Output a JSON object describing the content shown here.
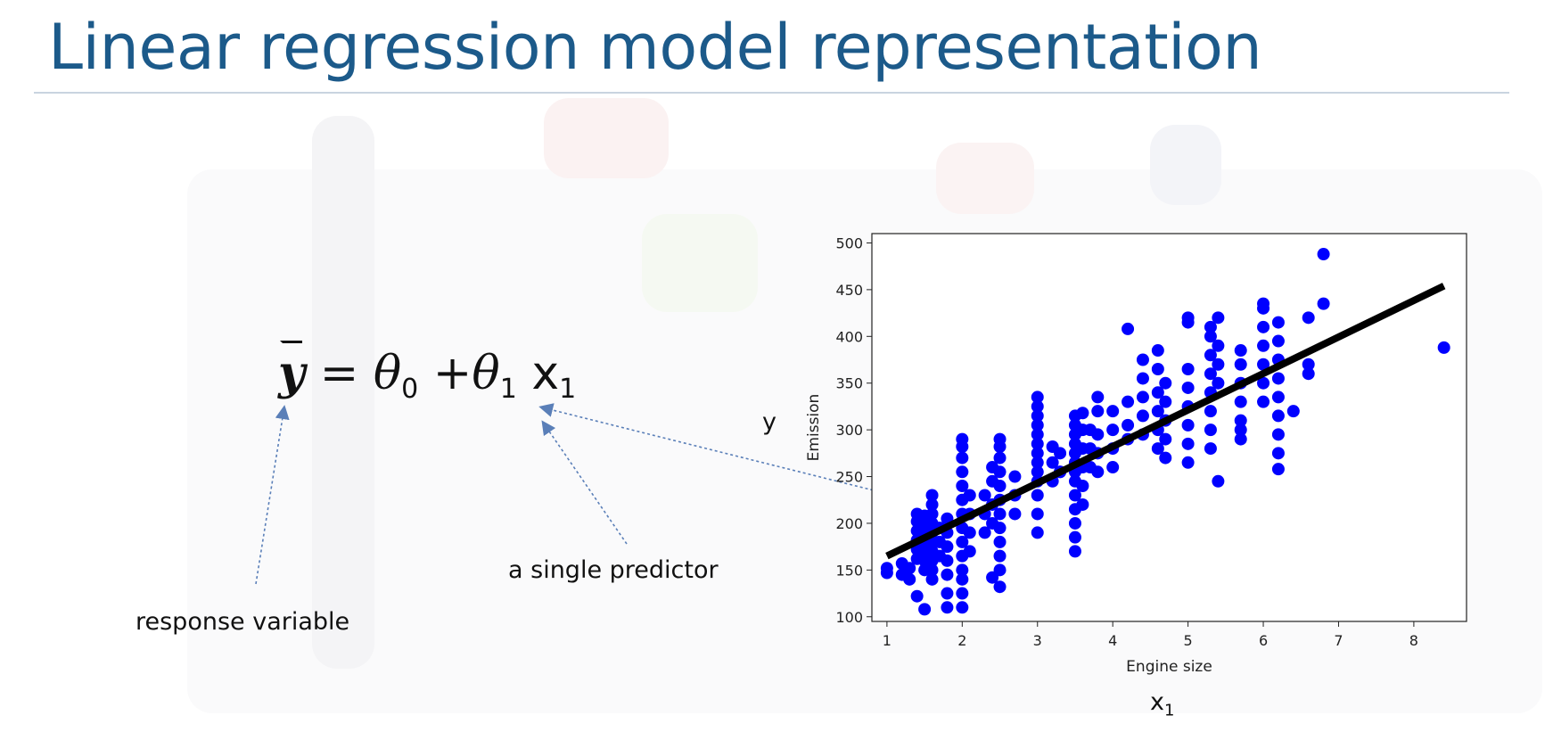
{
  "slide": {
    "title": "Linear regression model representation"
  },
  "formula": {
    "lhs": "y",
    "equals": "=",
    "theta": "θ",
    "sub0": "0",
    "plus": "+",
    "sub1": "1",
    "x": "x",
    "xsub": "1"
  },
  "annotations": {
    "response": "response variable",
    "predictor": "a single predictor",
    "y_label": "y",
    "x_label": "x",
    "x_sub": "1"
  },
  "colors": {
    "title": "#1c5a8a",
    "points": "#0000ff",
    "line": "#000000",
    "arrows": "#5a7fb8"
  },
  "chart_data": {
    "type": "scatter",
    "xlabel": "Engine size",
    "ylabel": "Emission",
    "xlim": [
      0.8,
      8.7
    ],
    "ylim": [
      95,
      510
    ],
    "xticks": [
      1,
      2,
      3,
      4,
      5,
      6,
      7,
      8
    ],
    "yticks": [
      100,
      150,
      200,
      250,
      300,
      350,
      400,
      450,
      500
    ],
    "grid": false,
    "series": [
      {
        "points": [
          [
            1.0,
            147
          ],
          [
            1.0,
            152
          ],
          [
            1.2,
            145
          ],
          [
            1.2,
            157
          ],
          [
            1.3,
            140
          ],
          [
            1.3,
            152
          ],
          [
            1.4,
            162
          ],
          [
            1.4,
            172
          ],
          [
            1.4,
            182
          ],
          [
            1.4,
            192
          ],
          [
            1.4,
            202
          ],
          [
            1.4,
            210
          ],
          [
            1.4,
            122
          ],
          [
            1.5,
            150
          ],
          [
            1.5,
            160
          ],
          [
            1.5,
            170
          ],
          [
            1.5,
            180
          ],
          [
            1.5,
            190
          ],
          [
            1.5,
            200
          ],
          [
            1.5,
            208
          ],
          [
            1.5,
            108
          ],
          [
            1.6,
            140
          ],
          [
            1.6,
            150
          ],
          [
            1.6,
            160
          ],
          [
            1.6,
            170
          ],
          [
            1.6,
            180
          ],
          [
            1.6,
            190
          ],
          [
            1.6,
            200
          ],
          [
            1.6,
            210
          ],
          [
            1.6,
            220
          ],
          [
            1.6,
            230
          ],
          [
            1.7,
            165
          ],
          [
            1.7,
            180
          ],
          [
            1.7,
            195
          ],
          [
            1.8,
            110
          ],
          [
            1.8,
            125
          ],
          [
            1.8,
            145
          ],
          [
            1.8,
            160
          ],
          [
            1.8,
            175
          ],
          [
            1.8,
            190
          ],
          [
            1.8,
            205
          ],
          [
            2.0,
            110
          ],
          [
            2.0,
            125
          ],
          [
            2.0,
            140
          ],
          [
            2.0,
            150
          ],
          [
            2.0,
            165
          ],
          [
            2.0,
            180
          ],
          [
            2.0,
            195
          ],
          [
            2.0,
            210
          ],
          [
            2.0,
            225
          ],
          [
            2.0,
            240
          ],
          [
            2.0,
            255
          ],
          [
            2.0,
            270
          ],
          [
            2.0,
            282
          ],
          [
            2.0,
            290
          ],
          [
            2.1,
            170
          ],
          [
            2.1,
            190
          ],
          [
            2.1,
            210
          ],
          [
            2.1,
            230
          ],
          [
            2.3,
            190
          ],
          [
            2.3,
            210
          ],
          [
            2.3,
            230
          ],
          [
            2.4,
            142
          ],
          [
            2.4,
            200
          ],
          [
            2.4,
            220
          ],
          [
            2.4,
            245
          ],
          [
            2.4,
            260
          ],
          [
            2.5,
            132
          ],
          [
            2.5,
            150
          ],
          [
            2.5,
            165
          ],
          [
            2.5,
            180
          ],
          [
            2.5,
            195
          ],
          [
            2.5,
            210
          ],
          [
            2.5,
            225
          ],
          [
            2.5,
            240
          ],
          [
            2.5,
            255
          ],
          [
            2.5,
            270
          ],
          [
            2.5,
            282
          ],
          [
            2.5,
            290
          ],
          [
            2.7,
            210
          ],
          [
            2.7,
            230
          ],
          [
            2.7,
            250
          ],
          [
            3.0,
            190
          ],
          [
            3.0,
            210
          ],
          [
            3.0,
            230
          ],
          [
            3.0,
            245
          ],
          [
            3.0,
            255
          ],
          [
            3.0,
            265
          ],
          [
            3.0,
            275
          ],
          [
            3.0,
            285
          ],
          [
            3.0,
            295
          ],
          [
            3.0,
            305
          ],
          [
            3.0,
            315
          ],
          [
            3.0,
            325
          ],
          [
            3.0,
            335
          ],
          [
            3.2,
            245
          ],
          [
            3.2,
            265
          ],
          [
            3.2,
            282
          ],
          [
            3.3,
            255
          ],
          [
            3.3,
            275
          ],
          [
            3.3,
            255
          ],
          [
            3.5,
            170
          ],
          [
            3.5,
            185
          ],
          [
            3.5,
            200
          ],
          [
            3.5,
            215
          ],
          [
            3.5,
            230
          ],
          [
            3.5,
            245
          ],
          [
            3.5,
            255
          ],
          [
            3.5,
            265
          ],
          [
            3.5,
            275
          ],
          [
            3.5,
            285
          ],
          [
            3.5,
            295
          ],
          [
            3.5,
            305
          ],
          [
            3.5,
            315
          ],
          [
            3.6,
            220
          ],
          [
            3.6,
            240
          ],
          [
            3.6,
            260
          ],
          [
            3.6,
            280
          ],
          [
            3.6,
            300
          ],
          [
            3.6,
            318
          ],
          [
            3.7,
            260
          ],
          [
            3.7,
            280
          ],
          [
            3.7,
            300
          ],
          [
            3.8,
            255
          ],
          [
            3.8,
            275
          ],
          [
            3.8,
            295
          ],
          [
            3.8,
            320
          ],
          [
            3.8,
            335
          ],
          [
            4.0,
            260
          ],
          [
            4.0,
            280
          ],
          [
            4.0,
            300
          ],
          [
            4.0,
            320
          ],
          [
            4.2,
            290
          ],
          [
            4.2,
            305
          ],
          [
            4.2,
            330
          ],
          [
            4.2,
            408
          ],
          [
            4.4,
            295
          ],
          [
            4.4,
            315
          ],
          [
            4.4,
            335
          ],
          [
            4.4,
            355
          ],
          [
            4.4,
            375
          ],
          [
            4.6,
            280
          ],
          [
            4.6,
            300
          ],
          [
            4.6,
            320
          ],
          [
            4.6,
            340
          ],
          [
            4.6,
            365
          ],
          [
            4.6,
            385
          ],
          [
            4.7,
            270
          ],
          [
            4.7,
            290
          ],
          [
            4.7,
            310
          ],
          [
            4.7,
            330
          ],
          [
            4.7,
            350
          ],
          [
            5.0,
            265
          ],
          [
            5.0,
            285
          ],
          [
            5.0,
            305
          ],
          [
            5.0,
            325
          ],
          [
            5.0,
            345
          ],
          [
            5.0,
            365
          ],
          [
            5.0,
            415
          ],
          [
            5.0,
            420
          ],
          [
            5.3,
            280
          ],
          [
            5.3,
            300
          ],
          [
            5.3,
            320
          ],
          [
            5.3,
            340
          ],
          [
            5.3,
            360
          ],
          [
            5.3,
            380
          ],
          [
            5.3,
            400
          ],
          [
            5.3,
            410
          ],
          [
            5.4,
            245
          ],
          [
            5.4,
            350
          ],
          [
            5.4,
            370
          ],
          [
            5.4,
            390
          ],
          [
            5.4,
            420
          ],
          [
            5.7,
            290
          ],
          [
            5.7,
            310
          ],
          [
            5.7,
            330
          ],
          [
            5.7,
            350
          ],
          [
            5.7,
            370
          ],
          [
            5.7,
            385
          ],
          [
            5.7,
            300
          ],
          [
            6.0,
            330
          ],
          [
            6.0,
            350
          ],
          [
            6.0,
            370
          ],
          [
            6.0,
            390
          ],
          [
            6.0,
            410
          ],
          [
            6.0,
            430
          ],
          [
            6.0,
            435
          ],
          [
            6.2,
            258
          ],
          [
            6.2,
            275
          ],
          [
            6.2,
            295
          ],
          [
            6.2,
            315
          ],
          [
            6.2,
            335
          ],
          [
            6.2,
            355
          ],
          [
            6.2,
            375
          ],
          [
            6.2,
            395
          ],
          [
            6.2,
            415
          ],
          [
            6.4,
            320
          ],
          [
            6.6,
            360
          ],
          [
            6.6,
            370
          ],
          [
            6.6,
            420
          ],
          [
            6.8,
            435
          ],
          [
            6.8,
            488
          ],
          [
            8.4,
            388
          ]
        ]
      }
    ],
    "regression_line": {
      "x": [
        1.0,
        8.4
      ],
      "y": [
        165,
        454
      ]
    }
  }
}
